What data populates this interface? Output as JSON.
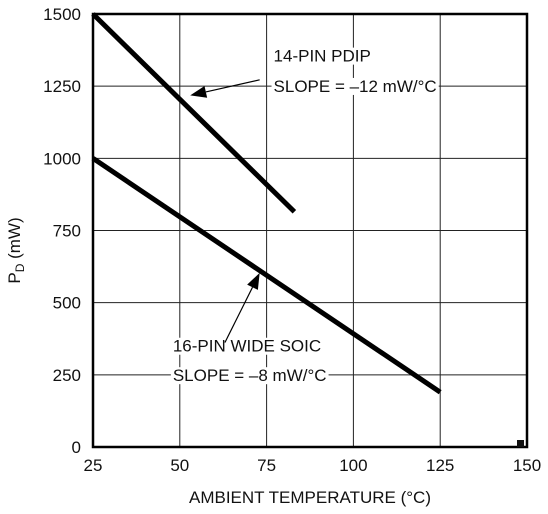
{
  "chart_data": {
    "type": "line",
    "xlabel": "AMBIENT TEMPERATURE (°C)",
    "ylabel": "P",
    "ylabel_subscript": "D",
    "ylabel_unit": " (mW)",
    "xlim": [
      25,
      150
    ],
    "ylim": [
      0,
      1500
    ],
    "xticks": [
      25,
      50,
      75,
      100,
      125,
      150
    ],
    "yticks": [
      0,
      250,
      500,
      750,
      1000,
      1250,
      1500
    ],
    "grid": true,
    "series": [
      {
        "name": "14-PIN PDIP",
        "x": [
          25,
          83
        ],
        "y": [
          1500,
          815
        ]
      },
      {
        "name": "16-PIN WIDE SOIC",
        "x": [
          25,
          125
        ],
        "y": [
          1000,
          190
        ]
      }
    ],
    "annotations": [
      {
        "lines": [
          "14-PIN PDIP",
          "SLOPE = –12 mW/°C"
        ],
        "text_x": 77,
        "text_y": [
          1335,
          1230
        ],
        "arrow_from": [
          73,
          1272
        ],
        "arrow_to": [
          53,
          1218
        ]
      },
      {
        "lines": [
          "16-PIN WIDE SOIC",
          "SLOPE = –8 mW/°C"
        ],
        "text_x": 48,
        "text_y": [
          330,
          228
        ],
        "arrow_from": [
          63,
          362
        ],
        "arrow_to": [
          73,
          603
        ]
      }
    ]
  }
}
